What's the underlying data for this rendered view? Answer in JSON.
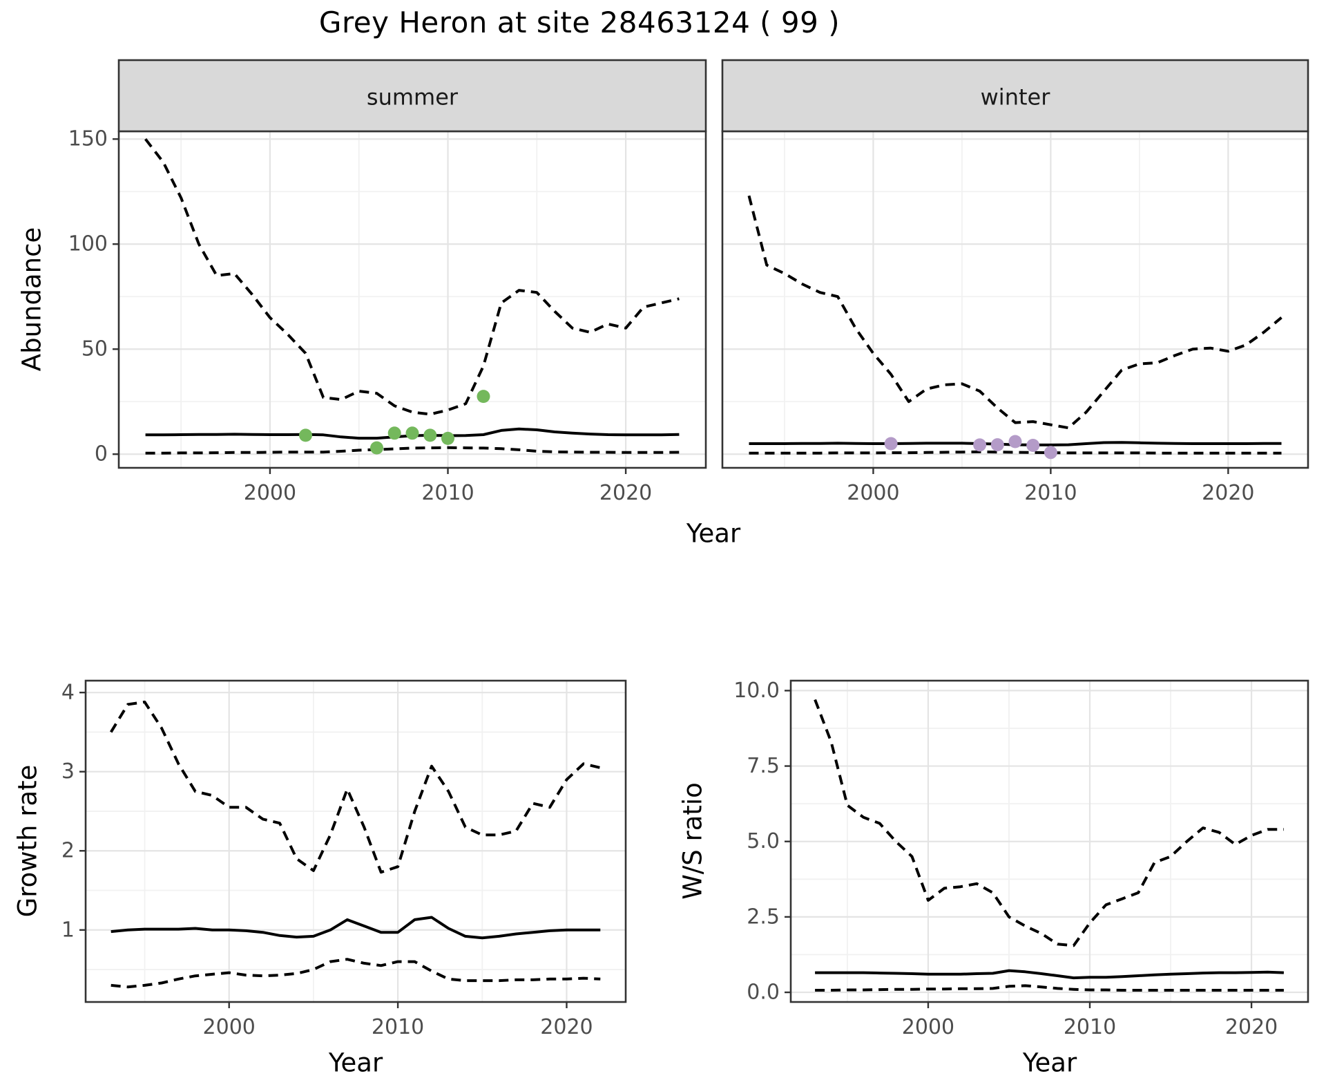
{
  "title": "Grey Heron at site 28463124 ( 99 )",
  "axes": {
    "x_title": "Year",
    "abundance_y_title": "Abundance",
    "growth_y_title": "Growth rate",
    "ws_y_title": "W/S ratio"
  },
  "colors": {
    "summer_points": "#74B85C",
    "winter_points": "#B49BC8",
    "line": "#000000",
    "strip_bg": "#D9D9D9",
    "strip_text": "#1A1A1A",
    "panel_border": "#333333",
    "grid_major": "#E4E4E4",
    "grid_minor": "#F1F1F1",
    "axis_text": "#4D4D4D",
    "panel_bg": "#FFFFFF"
  },
  "chart_data": [
    {
      "id": "abundance-summer",
      "type": "line",
      "panel": "summer",
      "facet_label": "summer",
      "title": "Grey Heron at site 28463124 ( 99 )",
      "xlabel": "Year",
      "ylabel": "Abundance",
      "x_years": [
        1993,
        1994,
        1995,
        1996,
        1997,
        1998,
        1999,
        2000,
        2001,
        2002,
        2003,
        2004,
        2005,
        2006,
        2007,
        2008,
        2009,
        2010,
        2011,
        2012,
        2013,
        2014,
        2015,
        2016,
        2017,
        2018,
        2019,
        2020,
        2021,
        2022,
        2023
      ],
      "xlim": [
        1991.5,
        2024.5
      ],
      "ylim": [
        -6.5,
        153.7
      ],
      "xticks": [
        2000,
        2010,
        2020
      ],
      "xtick_labels": [
        "2000",
        "2010",
        "2020"
      ],
      "yticks": [
        0,
        50,
        100,
        150
      ],
      "ytick_labels": [
        "0",
        "50",
        "100",
        "150"
      ],
      "x_minor": [
        1995,
        2005,
        2015
      ],
      "y_minor": [
        25,
        75,
        125
      ],
      "series": [
        {
          "name": "upper_95_CI",
          "style": "dashed",
          "values": [
            150,
            139,
            122,
            100,
            85,
            86,
            76,
            65,
            57,
            48,
            27,
            26,
            30,
            29,
            23,
            20,
            19,
            21,
            24,
            42,
            72,
            78,
            77,
            68,
            60,
            58,
            62,
            60,
            70,
            72,
            74
          ]
        },
        {
          "name": "median",
          "style": "solid",
          "values": [
            9.2,
            9.2,
            9.3,
            9.4,
            9.4,
            9.5,
            9.4,
            9.3,
            9.3,
            9.4,
            9.2,
            8.2,
            7.6,
            7.6,
            8.2,
            8.8,
            9.0,
            8.8,
            8.9,
            9.3,
            11.3,
            12.0,
            11.6,
            10.6,
            10.0,
            9.6,
            9.3,
            9.2,
            9.2,
            9.2,
            9.4
          ]
        },
        {
          "name": "lower_95_CI",
          "style": "dashed",
          "values": [
            0.5,
            0.5,
            0.6,
            0.6,
            0.7,
            0.8,
            0.8,
            0.9,
            1.0,
            1.0,
            1.0,
            1.4,
            1.9,
            2.2,
            2.5,
            2.9,
            3.0,
            3.1,
            3.0,
            2.9,
            2.6,
            2.1,
            1.4,
            1.1,
            1.0,
            0.9,
            0.9,
            0.8,
            0.8,
            0.8,
            0.9
          ]
        }
      ],
      "observations": {
        "color_key": "summer_points",
        "years": [
          2002,
          2006,
          2007,
          2008,
          2009,
          2010,
          2012
        ],
        "values": [
          9,
          3,
          10,
          10,
          9,
          7.5,
          27.5
        ]
      }
    },
    {
      "id": "abundance-winter",
      "type": "line",
      "panel": "winter",
      "facet_label": "winter",
      "xlabel": "Year",
      "ylabel": "Abundance",
      "x_years": [
        1993,
        1994,
        1995,
        1996,
        1997,
        1998,
        1999,
        2000,
        2001,
        2002,
        2003,
        2004,
        2005,
        2006,
        2007,
        2008,
        2009,
        2010,
        2011,
        2012,
        2013,
        2014,
        2015,
        2016,
        2017,
        2018,
        2019,
        2020,
        2021,
        2022,
        2023
      ],
      "xlim": [
        1991.5,
        2024.5
      ],
      "ylim": [
        -6.5,
        153.7
      ],
      "xticks": [
        2000,
        2010,
        2020
      ],
      "xtick_labels": [
        "2000",
        "2010",
        "2020"
      ],
      "yticks": [
        0,
        50,
        100,
        150
      ],
      "ytick_labels": [],
      "x_minor": [
        1995,
        2005,
        2015
      ],
      "y_minor": [
        25,
        75,
        125
      ],
      "series": [
        {
          "name": "upper_95_CI",
          "style": "dashed",
          "values": [
            123,
            90,
            86,
            81,
            77,
            75,
            60,
            48,
            38,
            25,
            31,
            33,
            33.5,
            30,
            22,
            15,
            15.5,
            14,
            12.5,
            20,
            30,
            40,
            43,
            43.5,
            47,
            50,
            50.5,
            49,
            52,
            58,
            65
          ]
        },
        {
          "name": "median",
          "style": "solid",
          "values": [
            5.0,
            5.0,
            5.0,
            5.1,
            5.1,
            5.2,
            5.1,
            5.0,
            5.0,
            5.1,
            5.2,
            5.2,
            5.2,
            5.0,
            4.8,
            4.5,
            4.4,
            4.4,
            4.5,
            5.0,
            5.5,
            5.6,
            5.4,
            5.2,
            5.1,
            5.0,
            5.0,
            5.0,
            5.0,
            5.1,
            5.1
          ]
        },
        {
          "name": "lower_95_CI",
          "style": "dashed",
          "values": [
            0.5,
            0.5,
            0.5,
            0.5,
            0.5,
            0.6,
            0.6,
            0.6,
            0.7,
            0.7,
            0.8,
            0.9,
            1.0,
            1.1,
            1.0,
            0.9,
            0.8,
            0.7,
            0.6,
            0.6,
            0.6,
            0.6,
            0.6,
            0.5,
            0.5,
            0.5,
            0.5,
            0.5,
            0.5,
            0.5,
            0.5
          ]
        }
      ],
      "observations": {
        "color_key": "winter_points",
        "years": [
          2001,
          2006,
          2007,
          2008,
          2009,
          2010
        ],
        "values": [
          5,
          4.4,
          4.5,
          6,
          4.2,
          0.8
        ]
      }
    },
    {
      "id": "growth-rate",
      "type": "line",
      "panel": "growth",
      "facet_label": null,
      "xlabel": "Year",
      "ylabel": "Growth rate",
      "x_years": [
        1993,
        1994,
        1995,
        1996,
        1997,
        1998,
        1999,
        2000,
        2001,
        2002,
        2003,
        2004,
        2005,
        2006,
        2007,
        2008,
        2009,
        2010,
        2011,
        2012,
        2013,
        2014,
        2015,
        2016,
        2017,
        2018,
        2019,
        2020,
        2021,
        2022
      ],
      "xlim": [
        1991.5,
        2023.5
      ],
      "ylim": [
        0.09,
        4.15
      ],
      "xticks": [
        2000,
        2010,
        2020
      ],
      "xtick_labels": [
        "2000",
        "2010",
        "2020"
      ],
      "yticks": [
        1,
        2,
        3,
        4
      ],
      "ytick_labels": [
        "1",
        "2",
        "3",
        "4"
      ],
      "x_minor": [
        1995,
        2005,
        2015
      ],
      "y_minor": [
        0.5,
        1.5,
        2.5,
        3.5
      ],
      "series": [
        {
          "name": "upper_95_CI",
          "style": "dashed",
          "values": [
            3.5,
            3.85,
            3.88,
            3.55,
            3.1,
            2.75,
            2.7,
            2.55,
            2.55,
            2.4,
            2.35,
            1.9,
            1.75,
            2.2,
            2.78,
            2.3,
            1.73,
            1.8,
            2.5,
            3.07,
            2.75,
            2.3,
            2.2,
            2.2,
            2.25,
            2.6,
            2.55,
            2.9,
            3.1,
            3.05
          ]
        },
        {
          "name": "median",
          "style": "solid",
          "values": [
            0.98,
            1.0,
            1.01,
            1.01,
            1.01,
            1.02,
            1.0,
            1.0,
            0.99,
            0.97,
            0.93,
            0.91,
            0.92,
            1.0,
            1.13,
            1.05,
            0.97,
            0.97,
            1.13,
            1.16,
            1.02,
            0.92,
            0.9,
            0.92,
            0.95,
            0.97,
            0.99,
            1.0,
            1.0,
            1.0
          ]
        },
        {
          "name": "lower_95_CI",
          "style": "dashed",
          "values": [
            0.3,
            0.28,
            0.3,
            0.33,
            0.38,
            0.42,
            0.44,
            0.46,
            0.43,
            0.42,
            0.43,
            0.45,
            0.5,
            0.6,
            0.63,
            0.58,
            0.55,
            0.6,
            0.6,
            0.48,
            0.38,
            0.36,
            0.36,
            0.36,
            0.37,
            0.37,
            0.38,
            0.38,
            0.39,
            0.38
          ]
        }
      ],
      "observations": null
    },
    {
      "id": "ws-ratio",
      "type": "line",
      "panel": "ws",
      "facet_label": null,
      "xlabel": "Year",
      "ylabel": "W/S ratio",
      "x_years": [
        1993,
        1994,
        1995,
        1996,
        1997,
        1998,
        1999,
        2000,
        2001,
        2002,
        2003,
        2004,
        2005,
        2006,
        2007,
        2008,
        2009,
        2010,
        2011,
        2012,
        2013,
        2014,
        2015,
        2016,
        2017,
        2018,
        2019,
        2020,
        2021,
        2022
      ],
      "xlim": [
        1991.5,
        2023.5
      ],
      "ylim": [
        -0.32,
        10.33
      ],
      "xticks": [
        2000,
        2010,
        2020
      ],
      "xtick_labels": [
        "2000",
        "2010",
        "2020"
      ],
      "yticks": [
        0,
        2.5,
        5,
        7.5,
        10
      ],
      "ytick_labels": [
        "0.0",
        "2.5",
        "5.0",
        "7.5",
        "10.0"
      ],
      "x_minor": [
        1995,
        2005,
        2015
      ],
      "y_minor": [
        1.25,
        3.75,
        6.25,
        8.75
      ],
      "series": [
        {
          "name": "upper_95_CI",
          "style": "dashed",
          "values": [
            9.7,
            8.3,
            6.2,
            5.8,
            5.6,
            5.0,
            4.5,
            3.05,
            3.45,
            3.5,
            3.6,
            3.3,
            2.5,
            2.2,
            1.95,
            1.6,
            1.55,
            2.3,
            2.9,
            3.1,
            3.3,
            4.3,
            4.5,
            5.0,
            5.45,
            5.3,
            4.9,
            5.2,
            5.4,
            5.4
          ]
        },
        {
          "name": "median",
          "style": "solid",
          "values": [
            0.65,
            0.65,
            0.65,
            0.65,
            0.64,
            0.63,
            0.62,
            0.6,
            0.6,
            0.6,
            0.62,
            0.63,
            0.72,
            0.68,
            0.62,
            0.55,
            0.48,
            0.5,
            0.5,
            0.52,
            0.55,
            0.58,
            0.6,
            0.62,
            0.64,
            0.65,
            0.65,
            0.66,
            0.67,
            0.65
          ]
        },
        {
          "name": "lower_95_CI",
          "style": "dashed",
          "values": [
            0.07,
            0.07,
            0.08,
            0.08,
            0.09,
            0.1,
            0.1,
            0.11,
            0.11,
            0.12,
            0.12,
            0.13,
            0.2,
            0.22,
            0.18,
            0.13,
            0.1,
            0.08,
            0.08,
            0.07,
            0.07,
            0.07,
            0.07,
            0.07,
            0.07,
            0.07,
            0.07,
            0.07,
            0.07,
            0.07
          ]
        }
      ],
      "observations": null
    }
  ]
}
